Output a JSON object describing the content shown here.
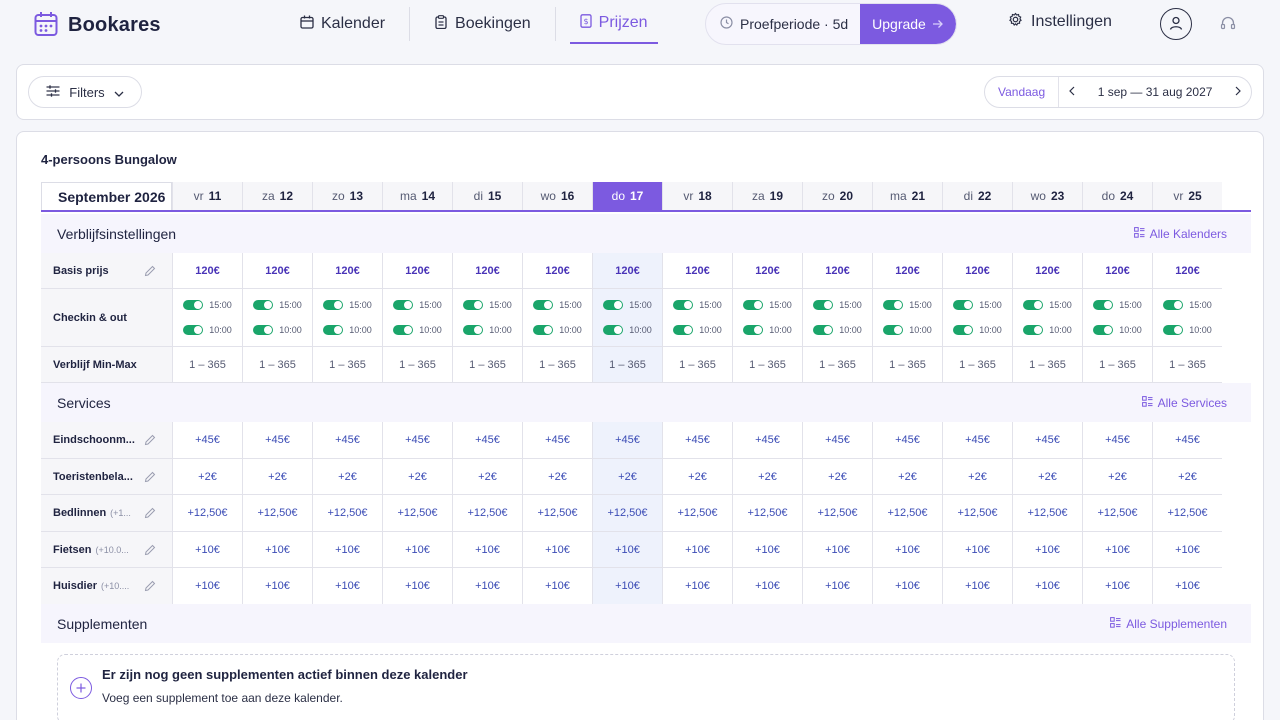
{
  "app": {
    "name": "Bookares",
    "logo_icon": "calendar-logo-icon"
  },
  "nav": {
    "items": [
      {
        "label": "Kalender",
        "icon": "calendar-icon"
      },
      {
        "label": "Boekingen",
        "icon": "clipboard-icon"
      },
      {
        "label": "Prijzen",
        "icon": "price-list-icon",
        "active": true
      }
    ]
  },
  "trial": {
    "label": "Proefperiode · 5d",
    "upgrade_label": "Upgrade"
  },
  "settings": {
    "label": "Instellingen"
  },
  "filterbar": {
    "filters_label": "Filters",
    "today_label": "Vandaag",
    "date_range": "1 sep — 31 aug 2027"
  },
  "unit": {
    "title": "4-persoons Bungalow"
  },
  "calendar": {
    "month_label": "September 2026",
    "days": [
      {
        "dow": "vr",
        "num": "11"
      },
      {
        "dow": "za",
        "num": "12"
      },
      {
        "dow": "zo",
        "num": "13"
      },
      {
        "dow": "ma",
        "num": "14"
      },
      {
        "dow": "di",
        "num": "15"
      },
      {
        "dow": "wo",
        "num": "16"
      },
      {
        "dow": "do",
        "num": "17",
        "today": true
      },
      {
        "dow": "vr",
        "num": "18"
      },
      {
        "dow": "za",
        "num": "19"
      },
      {
        "dow": "zo",
        "num": "20"
      },
      {
        "dow": "ma",
        "num": "21"
      },
      {
        "dow": "di",
        "num": "22"
      },
      {
        "dow": "wo",
        "num": "23"
      },
      {
        "dow": "do",
        "num": "24"
      },
      {
        "dow": "vr",
        "num": "25"
      }
    ]
  },
  "stay_settings": {
    "title": "Verblijfsinstellingen",
    "link_label": "Alle Kalenders",
    "base_price_label": "Basis prijs",
    "base_price_value": "120€",
    "checkin_label": "Checkin & out",
    "checkin_time": "15:00",
    "checkout_time": "10:00",
    "minmax_label": "Verblijf Min-Max",
    "minmax_value": "1 – 365"
  },
  "services": {
    "title": "Services",
    "link_label": "Alle Services",
    "rows": [
      {
        "label": "Eindschoonm...",
        "sub": "",
        "value": "+45€"
      },
      {
        "label": "Toeristenbela...",
        "sub": "",
        "value": "+2€"
      },
      {
        "label": "Bedlinnen",
        "sub": "(+1...",
        "value": "+12,50€"
      },
      {
        "label": "Fietsen",
        "sub": "(+10.0...",
        "value": "+10€"
      },
      {
        "label": "Huisdier",
        "sub": "(+10....",
        "value": "+10€"
      }
    ]
  },
  "supplements": {
    "title": "Supplementen",
    "link_label": "Alle Supplementen",
    "empty_title": "Er zijn nog geen supplementen actief binnen deze kalender",
    "empty_sub": "Voeg een supplement toe aan deze kalender."
  },
  "colors": {
    "accent": "#7c5ae0",
    "toggle_on": "#1aa56a",
    "today_bg": "#eef2fc"
  }
}
